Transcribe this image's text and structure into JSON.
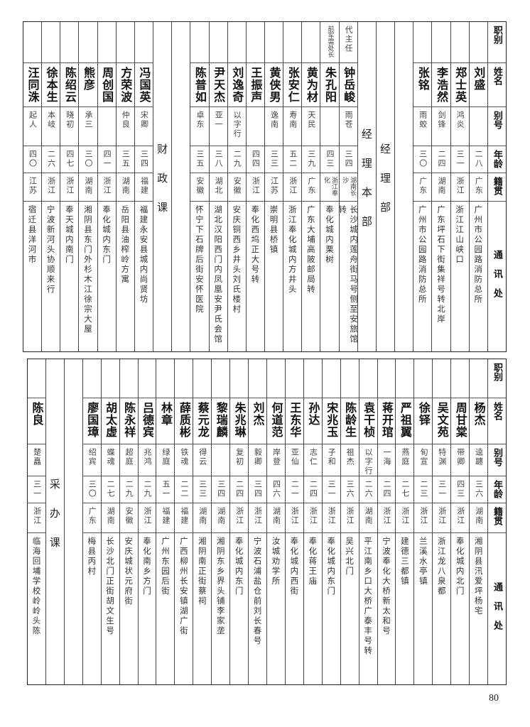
{
  "headers": {
    "title": "职别",
    "name": "姓名",
    "alias": "别号",
    "age": "年龄",
    "native": "籍贯",
    "address": "通讯处"
  },
  "tables": [
    {
      "columns": [
        {
          "type": "person",
          "title": "",
          "name": "刘盛",
          "alias": "",
          "age": "二八",
          "native": "广东",
          "address": "广州市公园路消防总所"
        },
        {
          "type": "person",
          "title": "",
          "name": "郑士英",
          "alias": "鸿炎",
          "age": "三一",
          "native": "浙江",
          "address": "浙江江山峡口"
        },
        {
          "type": "person",
          "title": "",
          "name": "李浩然",
          "alias": "剑锋",
          "age": "二四",
          "native": "湖南",
          "address": "广东坪石下街集祥号转北岸"
        },
        {
          "type": "person",
          "title": "",
          "name": "张铭",
          "alias": "雨蛟",
          "age": "三〇",
          "native": "广东",
          "address": "广州市公园路消防总所"
        },
        {
          "type": "empty"
        },
        {
          "type": "section",
          "label": "经理部"
        },
        {
          "type": "section",
          "label": "经理本部"
        },
        {
          "type": "person",
          "title": "代主任",
          "name": "钟岳峻",
          "alias": "雨苍",
          "age": "三四",
          "native": "湖南长沙",
          "address": "长沙城内莲舟街马号侧至安旅馆转"
        },
        {
          "type": "person",
          "title": "前军需处长",
          "name": "朱孔阳",
          "alias": "",
          "age": "四三",
          "native": "浙江奉化",
          "address": "奉化城内栗树"
        },
        {
          "type": "person",
          "title": "",
          "name": "黄为材",
          "alias": "天民",
          "age": "三九",
          "native": "广东",
          "address": "广东大埔高陂邮局转"
        },
        {
          "type": "person",
          "title": "",
          "name": "张安仁",
          "alias": "寿南",
          "age": "五二",
          "native": "浙江",
          "address": "浙江奉化城内方井头"
        },
        {
          "type": "person",
          "title": "",
          "name": "黄侠男",
          "alias": "逸南",
          "age": "三三",
          "native": "江苏",
          "address": "崇明县桥镇"
        },
        {
          "type": "person",
          "title": "",
          "name": "王振声",
          "alias": "",
          "age": "四四",
          "native": "浙江",
          "address": "奉化西坞正大号转"
        },
        {
          "type": "person",
          "title": "",
          "name": "刘逸奇",
          "alias": "以字行",
          "age": "二九",
          "native": "安徽",
          "address": "安庆铜西乡井头刘氏楼村"
        },
        {
          "type": "person",
          "title": "",
          "name": "尹天杰",
          "alias": "亚一",
          "age": "三八",
          "native": "湖北",
          "address": "湖北汉阳西门内凤凰安尹氏会馆"
        },
        {
          "type": "person",
          "title": "",
          "name": "陈普如",
          "alias": "卓东",
          "age": "三五",
          "native": "安徽",
          "address": "怀宁下石牌后街安怀医院"
        },
        {
          "type": "empty"
        },
        {
          "type": "section",
          "label": "财政课"
        },
        {
          "type": "person",
          "title": "",
          "name": "冯国英",
          "alias": "宋卿",
          "age": "三四",
          "native": "福建",
          "address": "福建永安县城内尚贤坊"
        },
        {
          "type": "person",
          "title": "",
          "name": "方荣波",
          "alias": "仲良",
          "age": "三五",
          "native": "湖南",
          "address": "岳阳县油榨岭方寓"
        },
        {
          "type": "person",
          "title": "",
          "name": "周创国",
          "alias": "",
          "age": "四一",
          "native": "浙江",
          "address": "奉化城内东门"
        },
        {
          "type": "person",
          "title": "",
          "name": "熊彦",
          "alias": "承三",
          "age": "三〇",
          "native": "湖南",
          "address": "湘阴县东门外杉木江徐宗大屋"
        },
        {
          "type": "person",
          "title": "",
          "name": "陈绍云",
          "alias": "晓初",
          "age": "四七",
          "native": "浙江",
          "address": "奉天城内南门"
        },
        {
          "type": "person",
          "title": "",
          "name": "徐本生",
          "alias": "本岐",
          "age": "二六",
          "native": "浙江",
          "address": "宁波新河头协顺来行"
        },
        {
          "type": "person",
          "title": "",
          "name": "汪同洙",
          "alias": "起人",
          "age": "四〇",
          "native": "江苏",
          "address": "宿迁县洋河市"
        }
      ]
    },
    {
      "columns": [
        {
          "type": "person",
          "title": "",
          "name": "杨杰",
          "alias": "逵躔",
          "age": "三六",
          "native": "湖南",
          "address": "湘阴县汛爱坪杨宅"
        },
        {
          "type": "person",
          "title": "",
          "name": "周甘棠",
          "alias": "带卿",
          "age": "四三",
          "native": "浙江",
          "address": "奉化城内北门"
        },
        {
          "type": "person",
          "title": "",
          "name": "吴文苑",
          "alias": "特渊",
          "age": "三一",
          "native": "浙江",
          "address": "浙江龙八泉都"
        },
        {
          "type": "person",
          "title": "",
          "name": "徐铎",
          "alias": "旬宣",
          "age": "二三",
          "native": "浙江",
          "address": "兰溪水亭镇"
        },
        {
          "type": "person",
          "title": "",
          "name": "严祖翼",
          "alias": "燕庭",
          "age": "二七",
          "native": "浙江",
          "address": "建德三都镇"
        },
        {
          "type": "person",
          "title": "",
          "name": "蒋开琯",
          "alias": "一海",
          "age": "二四",
          "native": "浙江",
          "address": "宁波奉化大桥新太和号"
        },
        {
          "type": "person",
          "title": "",
          "name": "袁干桢",
          "alias": "以字行",
          "age": "二六",
          "native": "湖南",
          "address": "平江南乡口大桥广泰丰号转"
        },
        {
          "type": "person",
          "title": "",
          "name": "陈龄生",
          "alias": "祖杰",
          "age": "三六",
          "native": "浙江",
          "address": "吴兴北门"
        },
        {
          "type": "person",
          "title": "",
          "name": "宋兆玉",
          "alias": "子和",
          "age": "三一",
          "native": "浙江",
          "address": "奉化城内东门"
        },
        {
          "type": "person",
          "title": "",
          "name": "孙达",
          "alias": "志仁",
          "age": "二四",
          "native": "浙江",
          "address": "奉化蒋王庙"
        },
        {
          "type": "person",
          "title": "",
          "name": "王东华",
          "alias": "亚仙",
          "age": "二一",
          "native": "浙江",
          "address": "奉化城内西街"
        },
        {
          "type": "person",
          "title": "",
          "name": "何道范",
          "alias": "岸登",
          "age": "四六",
          "native": "湖南",
          "address": "汝城劝学所"
        },
        {
          "type": "person",
          "title": "",
          "name": "刘杰",
          "alias": "毅卿",
          "age": "三四",
          "native": "浙江",
          "address": "宁波石浦盐仓前刘长春号"
        },
        {
          "type": "person",
          "title": "",
          "name": "朱兆琳",
          "alias": "复初",
          "age": "二四",
          "native": "浙江",
          "address": "奉化城内东门"
        },
        {
          "type": "person",
          "title": "",
          "name": "黎瑞麟",
          "alias": "",
          "age": "三四",
          "native": "湖南",
          "address": "湘阴东乡界头铺李家垄"
        },
        {
          "type": "person",
          "title": "",
          "name": "蔡元龙",
          "alias": "得云",
          "age": "三三",
          "native": "湖南",
          "address": "湘阴南正街蔡祠"
        },
        {
          "type": "person",
          "title": "",
          "name": "薛质彬",
          "alias": "铁魂",
          "age": "二二",
          "native": "福建",
          "address": "广西柳州长安镇湖广街"
        },
        {
          "type": "person",
          "title": "",
          "name": "林章",
          "alias": "绿庭",
          "age": "五一",
          "native": "福建",
          "address": "广州东园后街"
        },
        {
          "type": "person",
          "title": "",
          "name": "吕德宾",
          "alias": "兆鸿",
          "age": "二九",
          "native": "浙江",
          "address": "奉化南乡方门"
        },
        {
          "type": "person",
          "title": "",
          "name": "陈永祥",
          "alias": "超庭",
          "age": "二九",
          "native": "安徽",
          "address": "安庆城状元府街"
        },
        {
          "type": "person",
          "title": "",
          "name": "胡太虚",
          "alias": "蝶魂",
          "age": "二七",
          "native": "湖南",
          "address": "长沙北门正街胡文生号"
        },
        {
          "type": "person",
          "title": "",
          "name": "廖国璋",
          "alias": "绍宾",
          "age": "三〇",
          "native": "广东",
          "address": "梅县丙村"
        },
        {
          "type": "empty"
        },
        {
          "type": "section",
          "label": "采办课"
        },
        {
          "type": "person",
          "title": "",
          "name": "陈良",
          "alias": "楚矗",
          "age": "三一",
          "native": "浙江",
          "address": "临海回埔学校岭岭头陈"
        }
      ]
    }
  ],
  "page_number": "80"
}
